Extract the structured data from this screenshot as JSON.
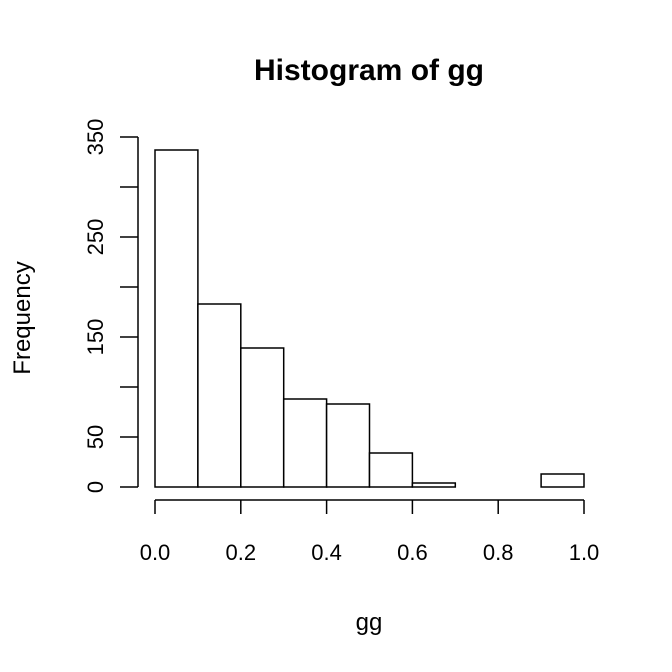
{
  "chart_data": {
    "type": "bar",
    "title": "Histogram of gg",
    "xlabel": "gg",
    "ylabel": "Frequency",
    "bins": [
      {
        "start": 0.0,
        "end": 0.1,
        "count": 337
      },
      {
        "start": 0.1,
        "end": 0.2,
        "count": 183
      },
      {
        "start": 0.2,
        "end": 0.3,
        "count": 139
      },
      {
        "start": 0.3,
        "end": 0.4,
        "count": 88
      },
      {
        "start": 0.4,
        "end": 0.5,
        "count": 83
      },
      {
        "start": 0.5,
        "end": 0.6,
        "count": 34
      },
      {
        "start": 0.6,
        "end": 0.7,
        "count": 4
      },
      {
        "start": 0.7,
        "end": 0.8,
        "count": 0
      },
      {
        "start": 0.8,
        "end": 0.9,
        "count": 0
      },
      {
        "start": 0.9,
        "end": 1.0,
        "count": 13
      }
    ],
    "xlim": [
      0,
      1
    ],
    "ylim": [
      0,
      350
    ],
    "x_ticks": [
      0.0,
      0.2,
      0.4,
      0.6,
      0.8,
      1.0
    ],
    "x_tick_labels": [
      "0.0",
      "0.2",
      "0.4",
      "0.6",
      "0.8",
      "1.0"
    ],
    "y_ticks": [
      0,
      50,
      100,
      150,
      200,
      250,
      300,
      350
    ],
    "y_tick_labels": [
      "0",
      "50",
      "",
      "150",
      "",
      "250",
      "",
      "350"
    ],
    "grid": false,
    "colors": {
      "bar_fill": "#ffffff",
      "bar_stroke": "#000000",
      "background": "#ffffff"
    }
  }
}
